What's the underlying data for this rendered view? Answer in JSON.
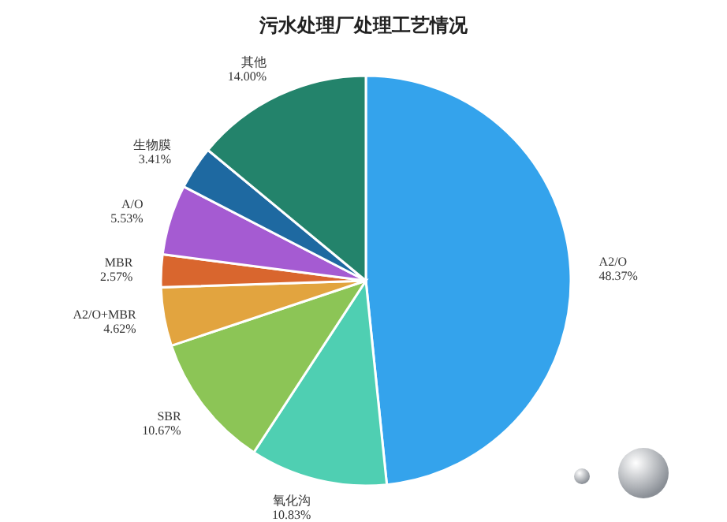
{
  "chart_data": {
    "type": "pie",
    "title": "污水处理厂处理工艺情况",
    "categories": [
      "A2/O",
      "氧化沟",
      "SBR",
      "A2/O+MBR",
      "MBR",
      "A/O",
      "生物膜",
      "其他"
    ],
    "values": [
      48.37,
      10.83,
      10.67,
      4.62,
      2.57,
      5.53,
      3.41,
      14.0
    ],
    "colors": [
      "#34a3ec",
      "#4fcfb2",
      "#8cc556",
      "#e2a43f",
      "#d9662e",
      "#a55bd2",
      "#1e69a1",
      "#23836b"
    ],
    "value_labels": [
      "48.37%",
      "10.83%",
      "10.67%",
      "4.62%",
      "2.57%",
      "5.53%",
      "3.41%",
      "14.00%"
    ]
  }
}
